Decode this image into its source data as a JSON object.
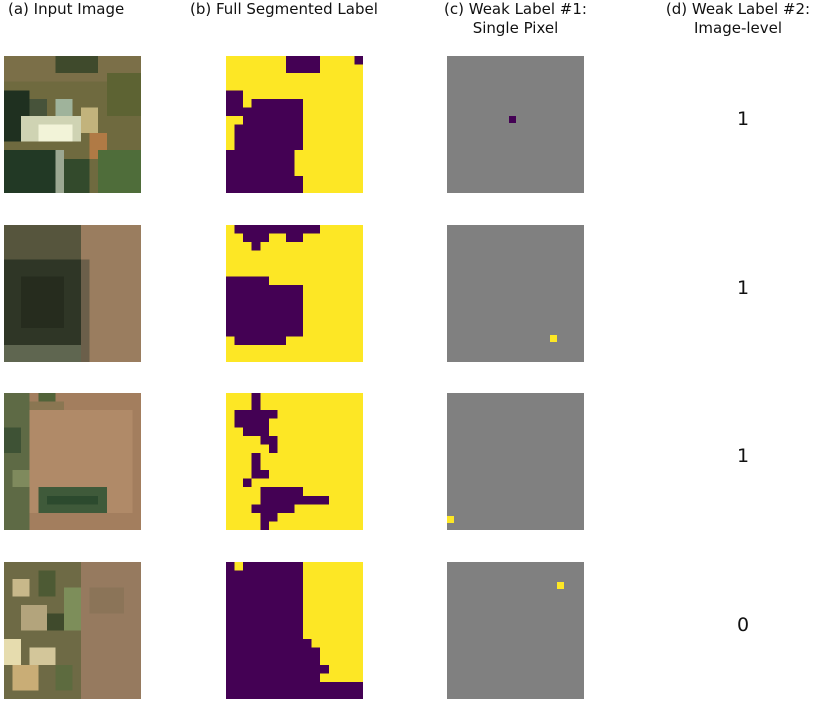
{
  "headers": {
    "a": "(a) Input Image",
    "b": "(b) Full Segmented Label",
    "c_line1": "(c) Weak Label #1:",
    "c_line2": "Single Pixel",
    "d_line1": "(d) Weak Label #2:",
    "d_line2": "Image-level"
  },
  "colors": {
    "foreground": "#FDE725",
    "background": "#440154",
    "unlabeled": "#808080"
  },
  "rows": [
    {
      "image_label": "1",
      "weak_pixel_class": "background"
    },
    {
      "image_label": "1",
      "weak_pixel_class": "foreground"
    },
    {
      "image_label": "1",
      "weak_pixel_class": "foreground"
    },
    {
      "image_label": "0",
      "weak_pixel_class": "foreground"
    }
  ]
}
